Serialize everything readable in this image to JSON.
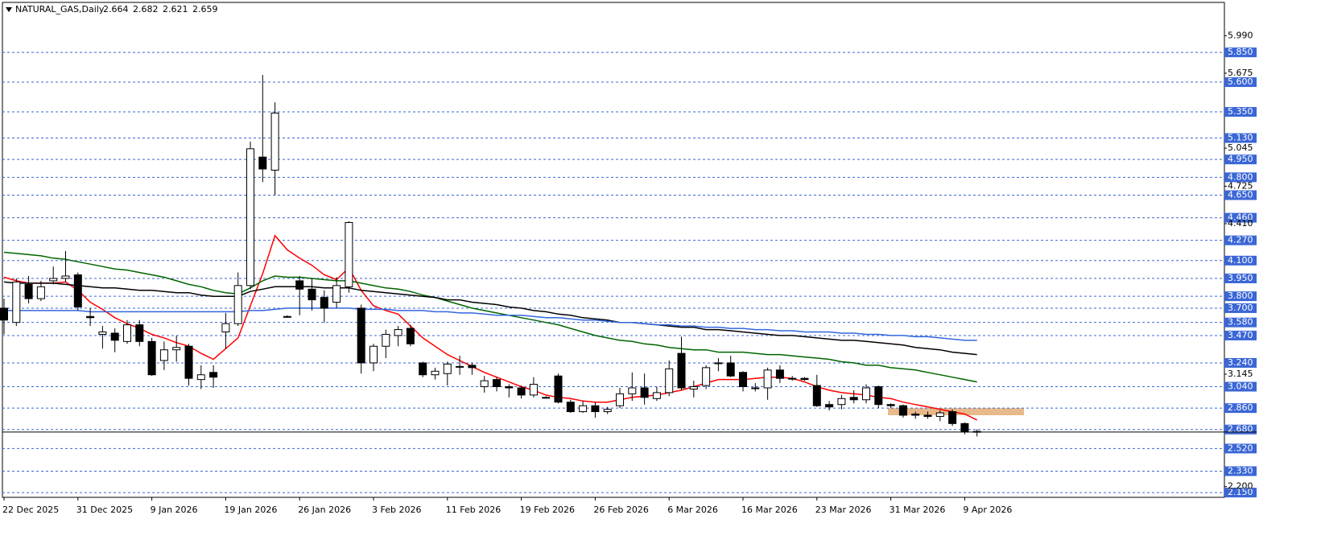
{
  "chart_data": {
    "type": "candlestick",
    "title": "NATURAL_GAS,Daily",
    "categories": [
      "22 Dec 2025",
      null,
      null,
      null,
      null,
      null,
      "31 Dec 2025",
      null,
      null,
      null,
      null,
      null,
      "9 Jan 2026",
      null,
      null,
      null,
      null,
      null,
      "19 Jan 2026",
      null,
      null,
      null,
      null,
      null,
      "26 Jan 2026",
      null,
      null,
      null,
      null,
      null,
      "3 Feb 2026",
      null,
      null,
      null,
      null,
      null,
      "11 Feb 2026",
      null,
      null,
      null,
      null,
      null,
      "19 Feb 2026",
      null,
      null,
      null,
      null,
      null,
      "26 Feb 2026",
      null,
      null,
      null,
      null,
      null,
      "6 Mar 2026",
      null,
      null,
      null,
      null,
      null,
      "16 Mar 2026",
      null,
      null,
      null,
      null,
      null,
      "23 Mar 2026",
      null,
      null,
      null,
      null,
      null,
      "31 Mar 2026",
      null,
      null,
      null,
      null,
      null,
      "9 Apr 2026",
      null
    ],
    "open": [
      3.7,
      3.58,
      3.9,
      3.78,
      3.93,
      3.95,
      3.98,
      3.63,
      3.48,
      3.49,
      3.42,
      3.56,
      3.42,
      3.26,
      3.35,
      3.38,
      3.1,
      3.16,
      3.5,
      3.57,
      3.89,
      4.97,
      4.86,
      3.63,
      3.93,
      3.86,
      3.79,
      3.75,
      3.88,
      3.7,
      3.24,
      3.38,
      3.47,
      3.53,
      3.24,
      3.14,
      3.15,
      3.21,
      3.22,
      3.04,
      3.1,
      3.04,
      3.03,
      2.97,
      2.95,
      3.13,
      2.91,
      2.83,
      2.88,
      2.83,
      2.88,
      2.98,
      3.03,
      2.94,
      2.99,
      3.32,
      3.02,
      3.05,
      3.24,
      3.24,
      3.16,
      3.03,
      3.03,
      3.18,
      3.11,
      3.11,
      3.05,
      2.89,
      2.89,
      2.95,
      2.93,
      3.04,
      2.89,
      2.88,
      2.81,
      2.8,
      2.79,
      2.83,
      2.73,
      2.664
    ],
    "high": [
      3.78,
      3.95,
      3.97,
      3.93,
      4.05,
      4.18,
      4.0,
      3.7,
      3.55,
      3.53,
      3.6,
      3.6,
      3.45,
      3.42,
      3.47,
      3.4,
      3.22,
      3.22,
      3.66,
      4.0,
      5.1,
      5.66,
      5.43,
      3.64,
      3.97,
      3.95,
      3.85,
      3.96,
      4.43,
      3.73,
      3.4,
      3.52,
      3.55,
      3.56,
      3.25,
      3.2,
      3.25,
      3.3,
      3.24,
      3.13,
      3.12,
      3.06,
      3.05,
      3.12,
      2.96,
      3.15,
      2.93,
      2.92,
      2.91,
      2.87,
      3.03,
      3.16,
      3.15,
      3.04,
      3.26,
      3.46,
      3.09,
      3.22,
      3.28,
      3.3,
      3.17,
      3.07,
      3.2,
      3.22,
      3.13,
      3.12,
      3.14,
      2.92,
      2.97,
      3.01,
      3.06,
      3.05,
      2.9,
      2.89,
      2.83,
      2.83,
      2.84,
      2.85,
      2.74,
      2.682
    ],
    "low": [
      3.48,
      3.55,
      3.74,
      3.76,
      3.9,
      3.92,
      3.68,
      3.55,
      3.36,
      3.33,
      3.4,
      3.38,
      3.13,
      3.18,
      3.25,
      3.05,
      3.02,
      3.03,
      3.36,
      3.55,
      3.86,
      4.76,
      4.65,
      3.62,
      3.64,
      3.68,
      3.58,
      3.7,
      3.83,
      3.15,
      3.17,
      3.28,
      3.38,
      3.38,
      3.12,
      3.1,
      3.05,
      3.14,
      3.14,
      2.99,
      3.0,
      2.95,
      2.94,
      2.95,
      2.94,
      2.9,
      2.82,
      2.82,
      2.78,
      2.81,
      2.86,
      2.92,
      2.89,
      2.92,
      2.96,
      3.01,
      2.95,
      3.02,
      3.17,
      3.12,
      3.0,
      3.0,
      2.93,
      3.07,
      3.09,
      3.09,
      2.87,
      2.84,
      2.85,
      2.9,
      2.9,
      2.86,
      2.86,
      2.78,
      2.77,
      2.77,
      2.75,
      2.71,
      2.64,
      2.621
    ],
    "close": [
      3.6,
      3.92,
      3.78,
      3.88,
      3.95,
      3.97,
      3.71,
      3.62,
      3.5,
      3.43,
      3.56,
      3.42,
      3.14,
      3.35,
      3.37,
      3.11,
      3.14,
      3.12,
      3.57,
      3.89,
      5.04,
      4.87,
      5.34,
      3.63,
      3.86,
      3.77,
      3.7,
      3.89,
      4.42,
      3.24,
      3.38,
      3.48,
      3.52,
      3.4,
      3.14,
      3.17,
      3.23,
      3.21,
      3.2,
      3.09,
      3.04,
      3.03,
      2.97,
      3.06,
      2.95,
      2.91,
      2.83,
      2.88,
      2.83,
      2.85,
      2.98,
      3.03,
      2.95,
      2.99,
      3.19,
      3.03,
      3.04,
      3.2,
      3.24,
      3.13,
      3.04,
      3.03,
      3.18,
      3.11,
      3.11,
      3.1,
      2.88,
      2.87,
      2.94,
      2.93,
      3.03,
      2.89,
      2.88,
      2.8,
      2.8,
      2.79,
      2.82,
      2.73,
      2.66,
      2.659
    ],
    "up_color": "#ffffff",
    "down_color": "#000000",
    "lines": [
      {
        "color": "#ff0000",
        "values": [
          3.96,
          3.93,
          3.91,
          3.91,
          3.91,
          3.92,
          3.85,
          3.75,
          3.69,
          3.62,
          3.57,
          3.53,
          3.48,
          3.45,
          3.41,
          3.38,
          3.32,
          3.27,
          3.36,
          3.45,
          3.72,
          3.99,
          4.31,
          4.19,
          4.12,
          4.06,
          3.98,
          3.94,
          4.04,
          3.85,
          3.72,
          3.68,
          3.65,
          3.55,
          3.45,
          3.38,
          3.31,
          3.26,
          3.21,
          3.16,
          3.12,
          3.08,
          3.04,
          3.01,
          2.97,
          2.95,
          2.94,
          2.92,
          2.91,
          2.91,
          2.93,
          2.95,
          2.96,
          2.97,
          2.99,
          3.01,
          3.04,
          3.07,
          3.1,
          3.1,
          3.1,
          3.11,
          3.12,
          3.12,
          3.11,
          3.08,
          3.04,
          3.01,
          2.99,
          2.98,
          2.97,
          2.95,
          2.94,
          2.91,
          2.89,
          2.87,
          2.85,
          2.83,
          2.81,
          2.76
        ]
      },
      {
        "color": "#006400",
        "values": [
          4.17,
          4.16,
          4.15,
          4.14,
          4.12,
          4.11,
          4.09,
          4.07,
          4.05,
          4.03,
          4.02,
          4.0,
          3.98,
          3.96,
          3.93,
          3.9,
          3.88,
          3.85,
          3.83,
          3.82,
          3.87,
          3.93,
          3.97,
          3.96,
          3.96,
          3.95,
          3.94,
          3.93,
          3.93,
          3.91,
          3.89,
          3.87,
          3.86,
          3.84,
          3.81,
          3.79,
          3.76,
          3.73,
          3.7,
          3.68,
          3.66,
          3.64,
          3.62,
          3.6,
          3.58,
          3.56,
          3.53,
          3.5,
          3.47,
          3.45,
          3.43,
          3.42,
          3.4,
          3.39,
          3.37,
          3.36,
          3.35,
          3.35,
          3.33,
          3.33,
          3.33,
          3.32,
          3.31,
          3.31,
          3.3,
          3.29,
          3.28,
          3.27,
          3.25,
          3.24,
          3.22,
          3.22,
          3.2,
          3.19,
          3.18,
          3.16,
          3.14,
          3.12,
          3.1,
          3.08
        ]
      },
      {
        "color": "#000000",
        "values": [
          3.92,
          3.91,
          3.91,
          3.91,
          3.91,
          3.9,
          3.89,
          3.88,
          3.87,
          3.87,
          3.86,
          3.85,
          3.85,
          3.84,
          3.83,
          3.83,
          3.81,
          3.8,
          3.8,
          3.8,
          3.84,
          3.86,
          3.88,
          3.88,
          3.88,
          3.88,
          3.87,
          3.87,
          3.87,
          3.85,
          3.84,
          3.83,
          3.82,
          3.81,
          3.8,
          3.79,
          3.77,
          3.77,
          3.75,
          3.74,
          3.73,
          3.71,
          3.7,
          3.68,
          3.67,
          3.65,
          3.64,
          3.62,
          3.61,
          3.6,
          3.58,
          3.58,
          3.57,
          3.56,
          3.55,
          3.54,
          3.54,
          3.52,
          3.52,
          3.51,
          3.5,
          3.49,
          3.48,
          3.47,
          3.47,
          3.46,
          3.45,
          3.44,
          3.43,
          3.43,
          3.42,
          3.41,
          3.4,
          3.39,
          3.37,
          3.36,
          3.35,
          3.33,
          3.32,
          3.31
        ]
      },
      {
        "color": "#3366dd",
        "values": [
          3.68,
          3.68,
          3.68,
          3.68,
          3.68,
          3.68,
          3.68,
          3.67,
          3.67,
          3.67,
          3.67,
          3.67,
          3.67,
          3.67,
          3.67,
          3.67,
          3.67,
          3.67,
          3.67,
          3.67,
          3.68,
          3.68,
          3.69,
          3.7,
          3.7,
          3.7,
          3.7,
          3.7,
          3.7,
          3.69,
          3.69,
          3.69,
          3.68,
          3.68,
          3.68,
          3.67,
          3.67,
          3.66,
          3.66,
          3.65,
          3.64,
          3.64,
          3.64,
          3.63,
          3.62,
          3.62,
          3.61,
          3.6,
          3.6,
          3.59,
          3.58,
          3.58,
          3.57,
          3.56,
          3.56,
          3.55,
          3.55,
          3.54,
          3.54,
          3.53,
          3.53,
          3.52,
          3.52,
          3.51,
          3.51,
          3.5,
          3.5,
          3.5,
          3.49,
          3.49,
          3.48,
          3.48,
          3.47,
          3.47,
          3.46,
          3.46,
          3.45,
          3.44,
          3.43,
          3.43
        ]
      }
    ],
    "zone": {
      "low": 2.8,
      "high": 2.86,
      "color": "#e8b98a"
    },
    "ylim": [
      2.11,
      6.27
    ],
    "yticks": [
      {
        "value": 5.99,
        "label": "5.990"
      },
      5.675,
      5.045,
      4.725,
      {
        "value": 4.41,
        "label": "4.410"
      },
      3.145,
      {
        "value": 2.2,
        "label": "2.200"
      }
    ],
    "levels": [
      {
        "value": 5.85,
        "label": "5.850"
      },
      {
        "value": 5.6,
        "label": "5.600"
      },
      {
        "value": 5.35,
        "label": "5.350"
      },
      {
        "value": 5.13,
        "label": "5.130"
      },
      {
        "value": 4.95,
        "label": "4.950"
      },
      {
        "value": 4.8,
        "label": "4.800"
      },
      {
        "value": 4.65,
        "label": "4.650"
      },
      {
        "value": 4.46,
        "label": "4.460"
      },
      {
        "value": 4.27,
        "label": "4.270"
      },
      {
        "value": 4.1,
        "label": "4.100"
      },
      {
        "value": 3.95,
        "label": "3.950"
      },
      {
        "value": 3.8,
        "label": "3.800"
      },
      {
        "value": 3.7,
        "label": "3.700"
      },
      {
        "value": 3.58,
        "label": "3.580"
      },
      {
        "value": 3.47,
        "label": "3.470"
      },
      {
        "value": 3.24,
        "label": "3.240"
      },
      {
        "value": 3.04,
        "label": "3.040"
      },
      {
        "value": 2.86,
        "label": "2.860"
      },
      {
        "value": 2.68,
        "label": "2.680"
      },
      {
        "value": 2.52,
        "label": "2.520"
      },
      {
        "value": 2.33,
        "label": "2.330"
      },
      {
        "value": 2.15,
        "label": "2.150"
      }
    ],
    "level_color": "#3a66d6"
  }
}
